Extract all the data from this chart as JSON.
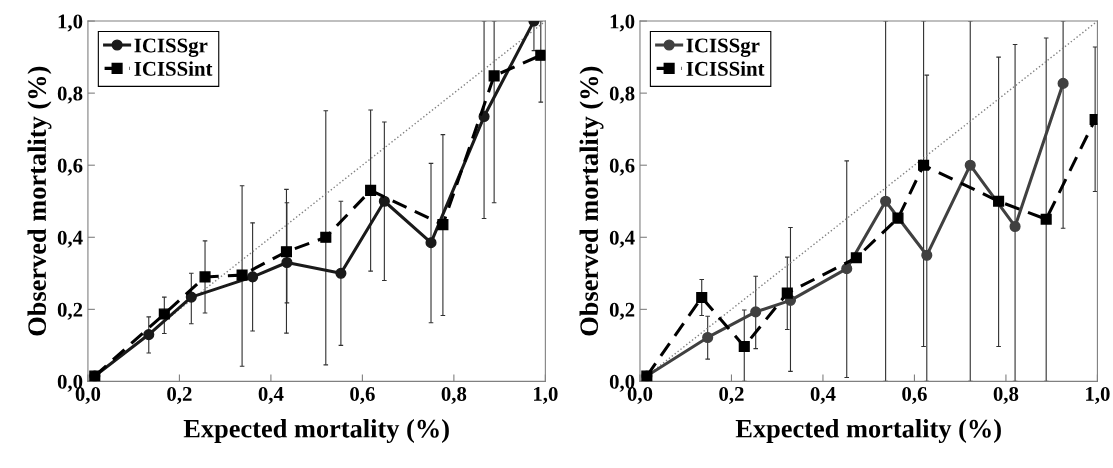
{
  "chart_data": [
    {
      "type": "line",
      "xlabel": "Expected mortality (%)",
      "ylabel": "Observed mortality (%)",
      "xlim": [
        0,
        1
      ],
      "ylim": [
        0,
        1
      ],
      "xticks": [
        {
          "value": 0,
          "label": "0,0"
        },
        {
          "value": 0.2,
          "label": "0,2"
        },
        {
          "value": 0.4,
          "label": "0,4"
        },
        {
          "value": 0.6,
          "label": "0,6"
        },
        {
          "value": 0.8,
          "label": "0,8"
        },
        {
          "value": 1,
          "label": "1,0"
        }
      ],
      "yticks": [
        {
          "value": 0,
          "label": "0,0"
        },
        {
          "value": 0.2,
          "label": "0,2"
        },
        {
          "value": 0.4,
          "label": "0,4"
        },
        {
          "value": 0.6,
          "label": "0,6"
        },
        {
          "value": 0.8,
          "label": "0,8"
        },
        {
          "value": 1,
          "label": "1,0"
        }
      ],
      "grid": false,
      "legend": "top left",
      "series": [
        {
          "type": "line",
          "x": [
            0,
            1
          ],
          "values": [
            0,
            1
          ],
          "color": "#808080",
          "line_style": "dotted",
          "marker": "none"
        },
        {
          "name": "ICISSgr",
          "color": "#1a1a1a",
          "marker": "circle",
          "line_style": "solid",
          "x": [
            0.015,
            0.133,
            0.226,
            0.36,
            0.435,
            0.553,
            0.648,
            0.75,
            0.866,
            0.975
          ],
          "values": [
            0.015,
            0.13,
            0.234,
            0.29,
            0.33,
            0.3,
            0.5,
            0.385,
            0.735,
            1.0
          ],
          "errors": [
            null,
            [
              0.079,
              0.179
            ],
            [
              0.16,
              0.3
            ],
            [
              0.14,
              0.44
            ],
            [
              0.218,
              0.496
            ],
            [
              0.1,
              0.5
            ],
            [
              0.28,
              0.72
            ],
            [
              0.163,
              0.605
            ],
            [
              0.452,
              1.0
            ],
            [
              0.918,
              1.0
            ]
          ]
        },
        {
          "name": "ICISSint",
          "color": "#000000",
          "marker": "square",
          "line_style": "dashed",
          "x": [
            0.015,
            0.167,
            0.256,
            0.337,
            0.434,
            0.52,
            0.618,
            0.776,
            0.888,
            0.99
          ],
          "values": [
            0.015,
            0.187,
            0.29,
            0.295,
            0.36,
            0.4,
            0.53,
            0.435,
            0.848,
            0.905
          ],
          "errors": [
            null,
            [
              0.133,
              0.234
            ],
            [
              0.19,
              0.39
            ],
            [
              0.042,
              0.543
            ],
            [
              0.134,
              0.533
            ],
            [
              0.046,
              0.751
            ],
            [
              0.306,
              0.753
            ],
            [
              0.183,
              0.685
            ],
            [
              0.496,
              1.0
            ],
            [
              0.775,
              1.0
            ]
          ]
        }
      ]
    },
    {
      "type": "line",
      "xlabel": "Expected mortality (%)",
      "ylabel": "Observed mortality (%)",
      "xlim": [
        0,
        1
      ],
      "ylim": [
        0,
        1
      ],
      "xticks": [
        {
          "value": 0,
          "label": "0,0"
        },
        {
          "value": 0.2,
          "label": "0,2"
        },
        {
          "value": 0.4,
          "label": "0,4"
        },
        {
          "value": 0.6,
          "label": "0,6"
        },
        {
          "value": 0.8,
          "label": "0,8"
        },
        {
          "value": 1,
          "label": "1,0"
        }
      ],
      "yticks": [
        {
          "value": 0,
          "label": "0,0"
        },
        {
          "value": 0.2,
          "label": "0,2"
        },
        {
          "value": 0.4,
          "label": "0,4"
        },
        {
          "value": 0.6,
          "label": "0,6"
        },
        {
          "value": 0.8,
          "label": "0,8"
        },
        {
          "value": 1,
          "label": "1,0"
        }
      ],
      "grid": false,
      "legend": "top left",
      "series": [
        {
          "type": "line",
          "x": [
            0,
            1
          ],
          "values": [
            0,
            1
          ],
          "color": "#808080",
          "line_style": "dotted",
          "marker": "none"
        },
        {
          "name": "ICISSgr",
          "color": "#404040",
          "marker": "circle",
          "line_style": "solid",
          "x": [
            0.015,
            0.148,
            0.253,
            0.329,
            0.452,
            0.537,
            0.627,
            0.722,
            0.82,
            0.925
          ],
          "values": [
            0.015,
            0.122,
            0.193,
            0.225,
            0.313,
            0.5,
            0.35,
            0.6,
            0.43,
            0.827
          ],
          "errors": [
            null,
            [
              0.062,
              0.181
            ],
            [
              0.091,
              0.292
            ],
            [
              0.028,
              0.427
            ],
            [
              0.011,
              0.612
            ],
            [
              0.0,
              1.0
            ],
            [
              0.0,
              0.85
            ],
            [
              0.0,
              1.0
            ],
            [
              0.0,
              0.935
            ],
            [
              0.425,
              1.0
            ]
          ]
        },
        {
          "name": "ICISSint",
          "color": "#000000",
          "marker": "square",
          "line_style": "dashed",
          "x": [
            0.015,
            0.135,
            0.228,
            0.322,
            0.473,
            0.564,
            0.62,
            0.784,
            0.888,
            0.995
          ],
          "values": [
            0.015,
            0.233,
            0.097,
            0.245,
            0.343,
            0.453,
            0.6,
            0.5,
            0.45,
            0.727
          ],
          "errors": [
            null,
            [
              0.183,
              0.283
            ],
            [
              0.0,
              0.198
            ],
            [
              0.144,
              0.345
            ],
            null,
            null,
            [
              0.097,
              1.0
            ],
            [
              0.097,
              0.9
            ],
            [
              0.0,
              0.953
            ],
            [
              0.527,
              0.928
            ]
          ]
        }
      ]
    }
  ]
}
